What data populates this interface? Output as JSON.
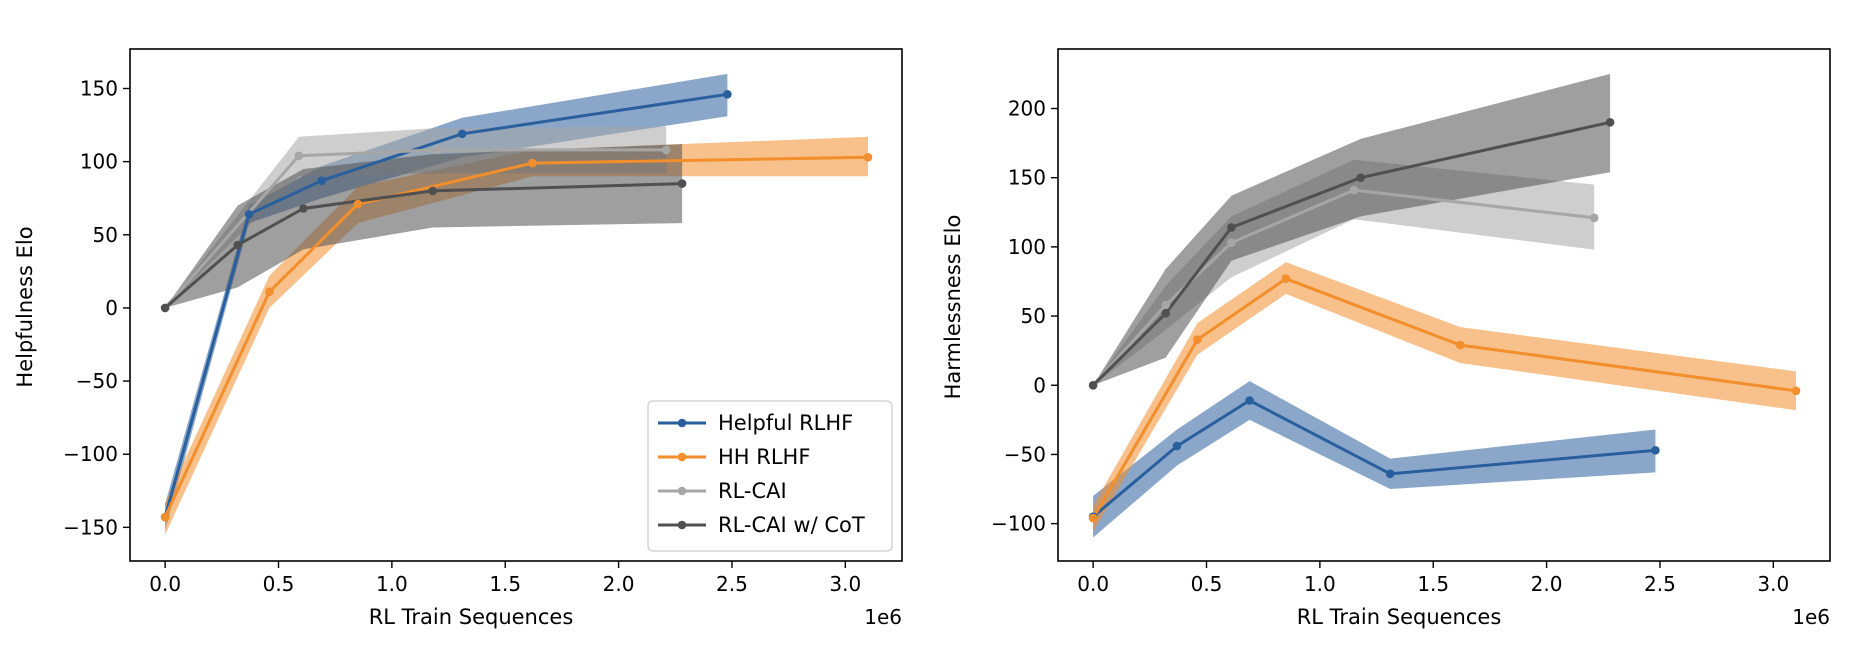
{
  "chart_data": [
    {
      "type": "line",
      "title": "",
      "xlabel": "RL Train Sequences",
      "ylabel": "Helpfulness Elo",
      "x_offset_label": "1e6",
      "xlim": [
        -0.155,
        3.25
      ],
      "ylim": [
        -173,
        177
      ],
      "xticks": [
        0.0,
        0.5,
        1.0,
        1.5,
        2.0,
        2.5,
        3.0
      ],
      "xtick_labels": [
        "0.0",
        "0.5",
        "1.0",
        "1.5",
        "2.0",
        "2.5",
        "3.0"
      ],
      "yticks": [
        -150,
        -100,
        -50,
        0,
        50,
        100,
        150
      ],
      "ytick_labels": [
        "−150",
        "−100",
        "−50",
        "0",
        "50",
        "100",
        "150"
      ],
      "grid": false,
      "legend": "lower-right",
      "series": [
        {
          "name": "Helpful RLHF",
          "color": "#2a5f9e",
          "x": [
            0.0,
            0.37,
            0.69,
            1.31,
            2.48
          ],
          "y": [
            -143,
            64,
            87,
            119,
            146
          ],
          "lower": [
            -152,
            58,
            75,
            103,
            131
          ],
          "upper": [
            -134,
            70,
            97,
            130,
            160
          ]
        },
        {
          "name": "HH RLHF",
          "color": "#f28e2b",
          "x": [
            0.0,
            0.46,
            0.85,
            1.62,
            3.1
          ],
          "y": [
            -143,
            11,
            71,
            99,
            103
          ],
          "lower": [
            -155,
            0,
            58,
            90,
            90
          ],
          "upper": [
            -133,
            22,
            83,
            108,
            117
          ]
        },
        {
          "name": "RL-CAI",
          "color": "#a6a6a6",
          "x": [
            0.0,
            0.59,
            1.2,
            2.21
          ],
          "y": [
            0,
            104,
            108,
            108
          ],
          "lower": [
            0,
            90,
            92,
            92
          ],
          "upper": [
            0,
            117,
            123,
            124
          ]
        },
        {
          "name": "RL-CAI w/ CoT",
          "color": "#505050",
          "x": [
            0.0,
            0.32,
            0.61,
            1.18,
            2.28
          ],
          "y": [
            0,
            43,
            68,
            80,
            85
          ],
          "lower": [
            0,
            14,
            40,
            55,
            58
          ],
          "upper": [
            0,
            70,
            95,
            105,
            112
          ]
        }
      ]
    },
    {
      "type": "line",
      "title": "",
      "xlabel": "RL Train Sequences",
      "ylabel": "Harmlessness Elo",
      "x_offset_label": "1e6",
      "xlim": [
        -0.155,
        3.25
      ],
      "ylim": [
        -127,
        243
      ],
      "xticks": [
        0.0,
        0.5,
        1.0,
        1.5,
        2.0,
        2.5,
        3.0
      ],
      "xtick_labels": [
        "0.0",
        "0.5",
        "1.0",
        "1.5",
        "2.0",
        "2.5",
        "3.0"
      ],
      "yticks": [
        -100,
        -50,
        0,
        50,
        100,
        150,
        200
      ],
      "ytick_labels": [
        "−100",
        "−50",
        "0",
        "50",
        "100",
        "150",
        "200"
      ],
      "grid": false,
      "series": [
        {
          "name": "Helpful RLHF",
          "color": "#2a5f9e",
          "x": [
            0.0,
            0.37,
            0.69,
            1.31,
            2.48
          ],
          "y": [
            -95,
            -44,
            -11,
            -64,
            -47
          ],
          "lower": [
            -110,
            -58,
            -25,
            -75,
            -63
          ],
          "upper": [
            -80,
            -32,
            3,
            -53,
            -32
          ]
        },
        {
          "name": "HH RLHF",
          "color": "#f28e2b",
          "x": [
            0.0,
            0.46,
            0.85,
            1.62,
            3.1
          ],
          "y": [
            -96,
            33,
            77,
            29,
            -4
          ],
          "lower": [
            -106,
            22,
            66,
            16,
            -18
          ],
          "upper": [
            -87,
            45,
            89,
            42,
            10
          ]
        },
        {
          "name": "RL-CAI",
          "color": "#a6a6a6",
          "x": [
            0.0,
            0.32,
            0.61,
            1.15,
            2.21
          ],
          "y": [
            0,
            58,
            103,
            141,
            121
          ],
          "lower": [
            0,
            40,
            78,
            120,
            98
          ],
          "upper": [
            0,
            72,
            122,
            163,
            145
          ]
        },
        {
          "name": "RL-CAI w/ CoT",
          "color": "#505050",
          "x": [
            0.0,
            0.32,
            0.61,
            1.18,
            2.28
          ],
          "y": [
            0,
            52,
            114,
            150,
            190
          ],
          "lower": [
            0,
            20,
            90,
            122,
            154
          ],
          "upper": [
            0,
            84,
            137,
            178,
            225
          ]
        }
      ]
    }
  ]
}
